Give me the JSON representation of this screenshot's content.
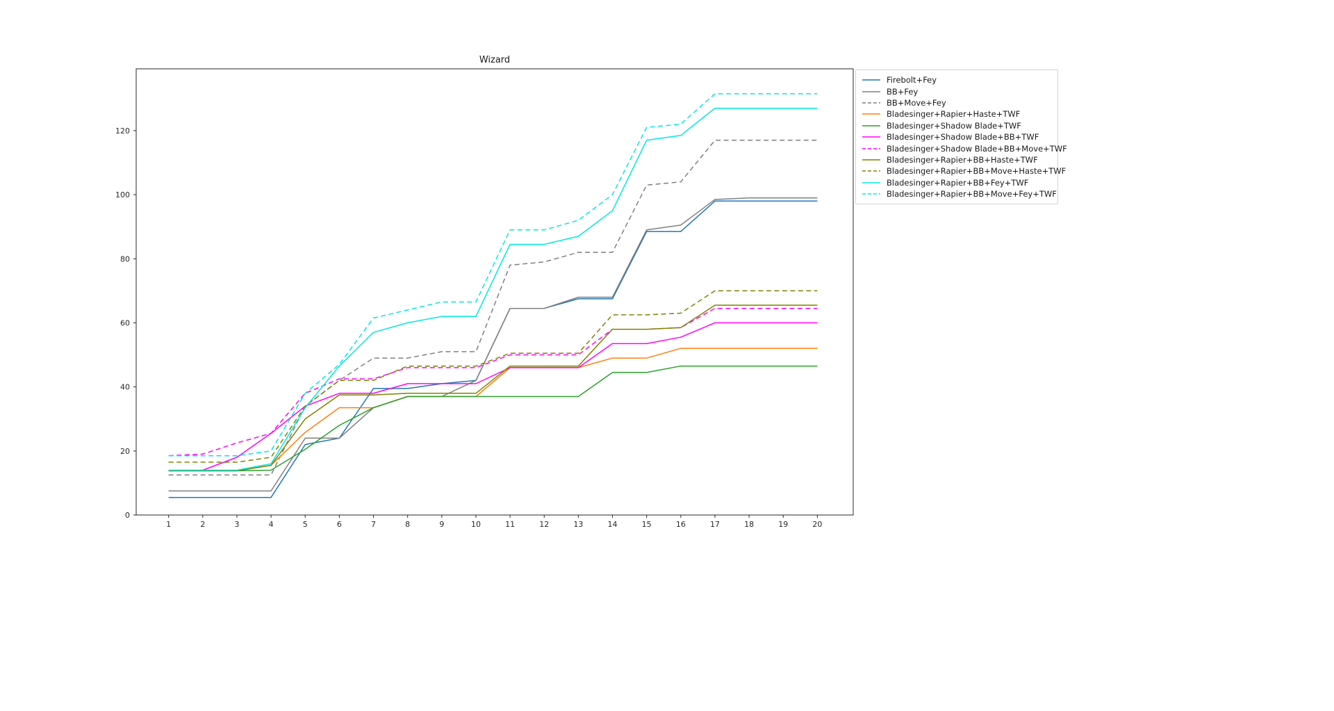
{
  "chart_data": {
    "type": "line",
    "title": "Wizard",
    "xlabel": "",
    "ylabel": "",
    "x": [
      1,
      2,
      3,
      4,
      5,
      6,
      7,
      8,
      9,
      10,
      11,
      12,
      13,
      14,
      15,
      16,
      17,
      18,
      19,
      20
    ],
    "xticks": [
      1,
      2,
      3,
      4,
      5,
      6,
      7,
      8,
      9,
      10,
      11,
      12,
      13,
      14,
      15,
      16,
      17,
      18,
      19,
      20
    ],
    "yticks": [
      0,
      20,
      40,
      60,
      80,
      100,
      120
    ],
    "xlim": [
      0.05,
      21.05
    ],
    "ylim": [
      0,
      139.3
    ],
    "grid": false,
    "legend_position": "upper-right-outside",
    "axis_color": "#262626",
    "series": [
      {
        "name": "Firebolt+Fey",
        "slug": "firebolt-fey",
        "color": "#1f77b4",
        "style": "solid",
        "values": [
          5.5,
          5.5,
          5.5,
          5.5,
          22,
          24,
          39.5,
          39.5,
          41,
          42,
          64.5,
          64.5,
          67.5,
          67.5,
          88.5,
          88.5,
          98,
          98,
          98,
          98
        ]
      },
      {
        "name": "BB+Fey",
        "slug": "bb-fey",
        "color": "#7f7f7f",
        "style": "solid",
        "values": [
          7.5,
          7.5,
          7.5,
          7.5,
          24,
          24,
          33.5,
          37,
          37,
          42,
          64.5,
          64.5,
          68,
          68,
          89,
          90.5,
          98.5,
          99,
          99,
          99
        ]
      },
      {
        "name": "BB+Move+Fey",
        "slug": "bb-move-fey",
        "color": "#7f7f7f",
        "style": "dashed",
        "values": [
          12.5,
          12.5,
          12.5,
          12.5,
          34,
          42,
          49,
          49,
          51,
          51,
          78,
          79,
          82,
          82,
          103,
          104,
          117,
          117,
          117,
          117
        ]
      },
      {
        "name": "Bladesinger+Rapier+Haste+TWF",
        "slug": "bs-rapier-haste-twf",
        "color": "#ff7f0e",
        "style": "solid",
        "values": [
          13.8,
          13.8,
          13.8,
          15.5,
          25.8,
          33.5,
          33.5,
          37,
          37,
          37,
          46,
          46,
          46,
          49,
          49,
          52,
          52,
          52,
          52,
          52
        ]
      },
      {
        "name": "Bladesinger+Shadow Blade+TWF",
        "slug": "bs-shadow-blade-twf",
        "color": "#2ca02c",
        "style": "solid",
        "values": [
          13.8,
          13.8,
          13.8,
          14,
          20.5,
          28,
          33.5,
          37,
          37,
          37,
          37,
          37,
          37,
          44.5,
          44.5,
          46.5,
          46.5,
          46.5,
          46.5,
          46.5
        ]
      },
      {
        "name": "Bladesinger+Shadow Blade+BB+TWF",
        "slug": "bs-shadow-blade-bb-twf",
        "color": "#ff00ff",
        "style": "solid",
        "values": [
          13.8,
          14,
          18,
          25.5,
          34,
          38,
          38,
          41,
          41,
          41,
          46,
          46,
          46,
          53.5,
          53.5,
          55.5,
          60,
          60,
          60,
          60
        ]
      },
      {
        "name": "Bladesinger+Shadow Blade+BB+Move+TWF",
        "slug": "bs-shadow-blade-bb-move-twf",
        "color": "#ff00ff",
        "style": "dashed",
        "values": [
          18.5,
          19,
          22.5,
          25.5,
          38,
          42.5,
          42.5,
          46,
          46,
          46,
          50,
          50,
          50,
          58,
          58,
          58.5,
          64.5,
          64.5,
          64.5,
          64.5
        ]
      },
      {
        "name": "Bladesinger+Rapier+BB+Haste+TWF",
        "slug": "bs-rapier-bb-haste-twf",
        "color": "#808000",
        "style": "solid",
        "values": [
          13.8,
          13.8,
          13.8,
          15.5,
          30,
          37.5,
          37.5,
          38,
          38,
          38,
          46.5,
          46.5,
          46.5,
          58,
          58,
          58.5,
          65.5,
          65.5,
          65.5,
          65.5
        ]
      },
      {
        "name": "Bladesinger+Rapier+BB+Move+Haste+TWF",
        "slug": "bs-rapier-bb-move-haste-twf",
        "color": "#808000",
        "style": "dashed",
        "values": [
          16.5,
          16.5,
          16.5,
          18,
          34,
          42,
          42,
          46.5,
          46.5,
          46.5,
          50.5,
          50.5,
          50.5,
          62.5,
          62.5,
          63,
          70,
          70,
          70,
          70
        ]
      },
      {
        "name": "Bladesinger+Rapier+BB+Fey+TWF",
        "slug": "bs-rapier-bb-fey-twf",
        "color": "#00e5e5",
        "style": "solid",
        "values": [
          14,
          14,
          14,
          16,
          33.5,
          46.5,
          57,
          60,
          62,
          62,
          84.5,
          84.5,
          87,
          95,
          117,
          118.5,
          127,
          127,
          127,
          127
        ]
      },
      {
        "name": "Bladesinger+Rapier+BB+Move+Fey+TWF",
        "slug": "bs-rapier-bb-move-fey-twf",
        "color": "#00e5e5",
        "style": "dashed",
        "values": [
          18.5,
          18.5,
          18.5,
          20,
          38,
          47,
          61.5,
          64,
          66.5,
          66.5,
          89,
          89,
          92,
          100,
          121,
          122,
          131.5,
          131.5,
          131.5,
          131.5
        ]
      }
    ]
  }
}
